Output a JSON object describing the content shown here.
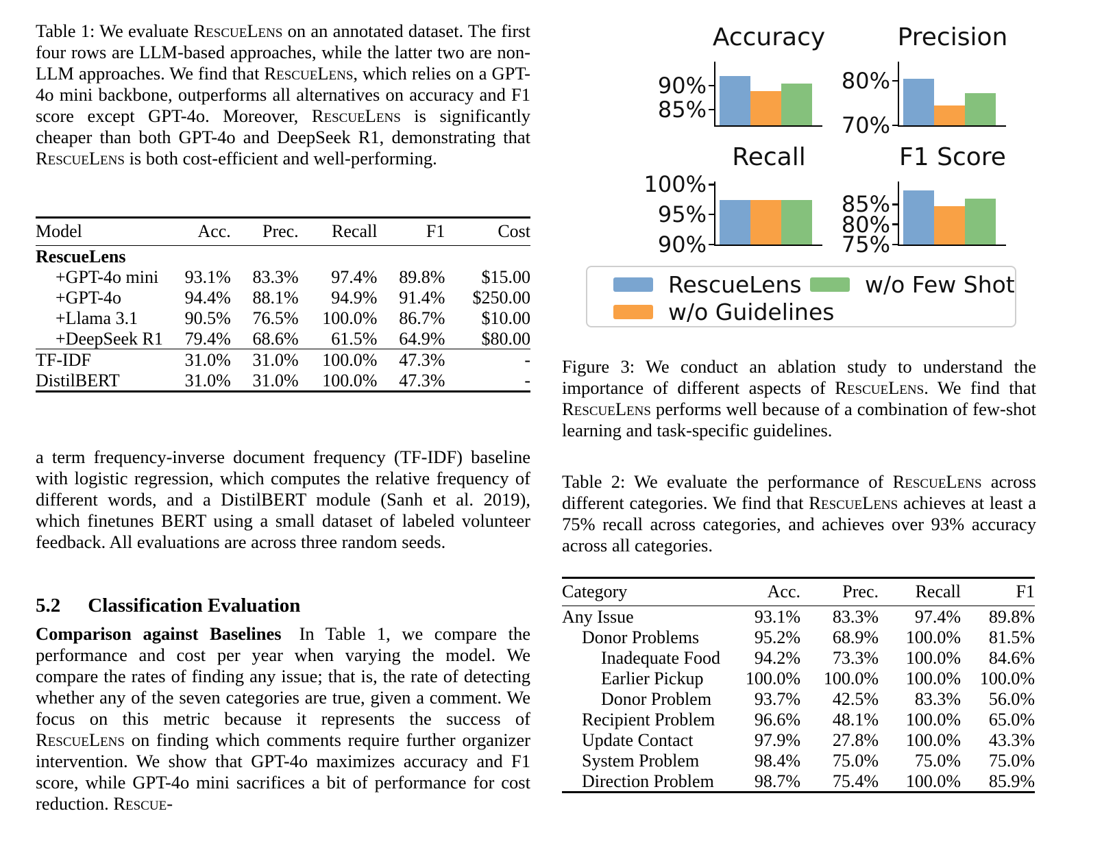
{
  "left_column": {
    "table1_caption": "Table 1: We evaluate RescueLens on an annotated dataset. The first four rows are LLM-based approaches, while the latter two are non-LLM approaches. We find that RescueLens, which relies on a GPT-4o mini backbone, outperforms all alternatives on accuracy and F1 score except GPT-4o. Moreover, RescueLens is significantly cheaper than both GPT-4o and DeepSeek R1, demonstrating that RescueLens is both cost-efficient and well-performing.",
    "table1": {
      "headers": [
        "Model",
        "Acc.",
        "Prec.",
        "Recall",
        "F1",
        "Cost"
      ],
      "group_label": "RescueLens",
      "llm_rows": [
        {
          "model": "+GPT-4o mini",
          "acc": "93.1%",
          "prec": "83.3%",
          "recall": "97.4%",
          "f1": "89.8%",
          "cost": "$15.00"
        },
        {
          "model": "+GPT-4o",
          "acc": "94.4%",
          "prec": "88.1%",
          "recall": "94.9%",
          "f1": "91.4%",
          "cost": "$250.00"
        },
        {
          "model": "+Llama 3.1",
          "acc": "90.5%",
          "prec": "76.5%",
          "recall": "100.0%",
          "f1": "86.7%",
          "cost": "$10.00"
        },
        {
          "model": "+DeepSeek R1",
          "acc": "79.4%",
          "prec": "68.6%",
          "recall": "61.5%",
          "f1": "64.9%",
          "cost": "$80.00"
        }
      ],
      "baseline_rows": [
        {
          "model": "TF-IDF",
          "acc": "31.0%",
          "prec": "31.0%",
          "recall": "100.0%",
          "f1": "47.3%",
          "cost": "-"
        },
        {
          "model": "DistilBERT",
          "acc": "31.0%",
          "prec": "31.0%",
          "recall": "100.0%",
          "f1": "47.3%",
          "cost": "-"
        }
      ]
    },
    "para_tfidf": "a term frequency-inverse document frequency (TF-IDF) baseline with logistic regression, which computes the relative frequency of different words, and a DistilBERT module (Sanh et al. 2019), which finetunes BERT using a small dataset of labeled volunteer feedback. All evaluations are across three random seeds.",
    "section": {
      "number": "5.2",
      "title": "Classification Evaluation"
    },
    "comparison_lead": "Comparison against Baselines",
    "comparison_body": "In Table 1, we compare the performance and cost per year when varying the model. We compare the rates of finding any issue; that is, the rate of detecting whether any of the seven categories are true, given a comment. We focus on this metric because it represents the success of RescueLens on finding which comments require further organizer intervention. We show that GPT-4o maximizes accuracy and F1 score, while GPT-4o mini sacrifices a bit of performance for cost reduction. Rescue-"
  },
  "figure3": {
    "legend": [
      {
        "label": "RescueLens",
        "color": "#7AA5D0"
      },
      {
        "label": "w/o Guidelines",
        "color": "#F9A145"
      },
      {
        "label": "w/o Few Shot",
        "color": "#85C17C"
      }
    ],
    "caption": "Figure 3: We conduct an ablation study to understand the importance of different aspects of RescueLens. We find that RescueLens performs well because of a combination of few-shot learning and task-specific guidelines."
  },
  "chart_data": [
    {
      "type": "bar",
      "title": "Accuracy",
      "grid": false,
      "legend_position": "below",
      "categories": [
        "RescueLens",
        "w/o Guidelines",
        "w/o Few Shot"
      ],
      "values": [
        92.0,
        88.8,
        90.4
      ],
      "ylim": [
        81.7,
        95.0
      ],
      "yticks": [
        {
          "value": 85,
          "label": "85%"
        },
        {
          "value": 90,
          "label": "90%"
        }
      ]
    },
    {
      "type": "bar",
      "title": "Precision",
      "grid": false,
      "legend_position": "below",
      "categories": [
        "RescueLens",
        "w/o Guidelines",
        "w/o Few Shot"
      ],
      "values": [
        80.5,
        74.5,
        77.2
      ],
      "ylim": [
        70,
        84.3
      ],
      "yticks": [
        {
          "value": 70,
          "label": "70%"
        },
        {
          "value": 80,
          "label": "80%"
        }
      ]
    },
    {
      "type": "bar",
      "title": "Recall",
      "grid": false,
      "legend_position": "below",
      "categories": [
        "RescueLens",
        "w/o Guidelines",
        "w/o Few Shot"
      ],
      "values": [
        97.4,
        97.4,
        97.4
      ],
      "ylim": [
        90,
        100.5
      ],
      "yticks": [
        {
          "value": 90,
          "label": "90%"
        },
        {
          "value": 95,
          "label": "95%"
        },
        {
          "value": 100,
          "label": "100%"
        }
      ]
    },
    {
      "type": "bar",
      "title": "F1 Score",
      "grid": false,
      "legend_position": "below",
      "categories": [
        "RescueLens",
        "w/o Guidelines",
        "w/o Few Shot"
      ],
      "values": [
        88.4,
        84.5,
        86.5
      ],
      "ylim": [
        75,
        90.7
      ],
      "yticks": [
        {
          "value": 75,
          "label": "75%"
        },
        {
          "value": 80,
          "label": "80%"
        },
        {
          "value": 85,
          "label": "85%"
        }
      ]
    }
  ],
  "table2": {
    "caption": "Table 2: We evaluate the performance of RescueLens across different categories. We find that RescueLens achieves at least a 75% recall across categories, and achieves over 93% accuracy across all categories.",
    "headers": [
      "Category",
      "Acc.",
      "Prec.",
      "Recall",
      "F1"
    ],
    "rows": [
      {
        "category": "Any Issue",
        "indent": 0,
        "acc": "93.1%",
        "prec": "83.3%",
        "recall": "97.4%",
        "f1": "89.8%"
      },
      {
        "category": "Donor Problems",
        "indent": 1,
        "acc": "95.2%",
        "prec": "68.9%",
        "recall": "100.0%",
        "f1": "81.5%"
      },
      {
        "category": "Inadequate Food",
        "indent": 2,
        "acc": "94.2%",
        "prec": "73.3%",
        "recall": "100.0%",
        "f1": "84.6%"
      },
      {
        "category": "Earlier Pickup",
        "indent": 2,
        "acc": "100.0%",
        "prec": "100.0%",
        "recall": "100.0%",
        "f1": "100.0%"
      },
      {
        "category": "Donor Problem",
        "indent": 2,
        "acc": "93.7%",
        "prec": "42.5%",
        "recall": "83.3%",
        "f1": "56.0%"
      },
      {
        "category": "Recipient Problem",
        "indent": 1,
        "acc": "96.6%",
        "prec": "48.1%",
        "recall": "100.0%",
        "f1": "65.0%"
      },
      {
        "category": "Update Contact",
        "indent": 1,
        "acc": "97.9%",
        "prec": "27.8%",
        "recall": "100.0%",
        "f1": "43.3%"
      },
      {
        "category": "System Problem",
        "indent": 1,
        "acc": "98.4%",
        "prec": "75.0%",
        "recall": "75.0%",
        "f1": "75.0%"
      },
      {
        "category": "Direction Problem",
        "indent": 1,
        "acc": "98.7%",
        "prec": "75.4%",
        "recall": "100.0%",
        "f1": "85.9%"
      }
    ]
  }
}
